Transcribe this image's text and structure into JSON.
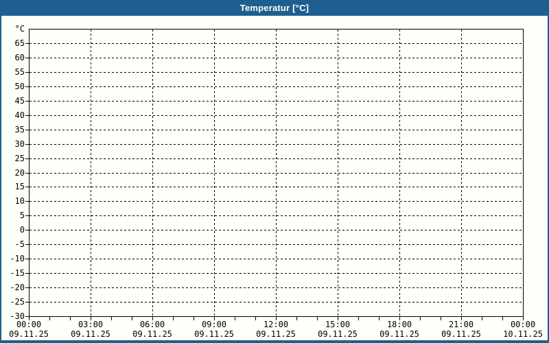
{
  "window": {
    "title": "Temperatur [°C]"
  },
  "colors": {
    "titlebar_background": "#1E5F8F",
    "titlebar_text": "#FFFFFF",
    "frame": "#1E5F8F",
    "content_background": "#FDFFF9",
    "grid": "#000000",
    "axis_text": "#000000"
  },
  "chart_data": {
    "type": "line",
    "title": "Temperatur [°C]",
    "series": [],
    "grid": "dashed",
    "y_axis": {
      "unit": "°C",
      "min": -30,
      "max": 70,
      "tick_step": 5,
      "tick_labels": [
        "65",
        "60",
        "55",
        "50",
        "45",
        "40",
        "35",
        "30",
        "25",
        "20",
        "15",
        "10",
        "5",
        "0",
        "-5",
        "-10",
        "-15",
        "-20",
        "-25",
        "-30"
      ]
    },
    "x_axis": {
      "range_hours": 24,
      "major_tick_hours": 3,
      "minor_tick_hours": 1,
      "ticks": [
        {
          "time": "00:00",
          "date": "09.11.25"
        },
        {
          "time": "03:00",
          "date": "09.11.25"
        },
        {
          "time": "06:00",
          "date": "09.11.25"
        },
        {
          "time": "09:00",
          "date": "09.11.25"
        },
        {
          "time": "12:00",
          "date": "09.11.25"
        },
        {
          "time": "15:00",
          "date": "09.11.25"
        },
        {
          "time": "18:00",
          "date": "09.11.25"
        },
        {
          "time": "21:00",
          "date": "09.11.25"
        },
        {
          "time": "00:00",
          "date": "10.11.25"
        }
      ]
    }
  }
}
